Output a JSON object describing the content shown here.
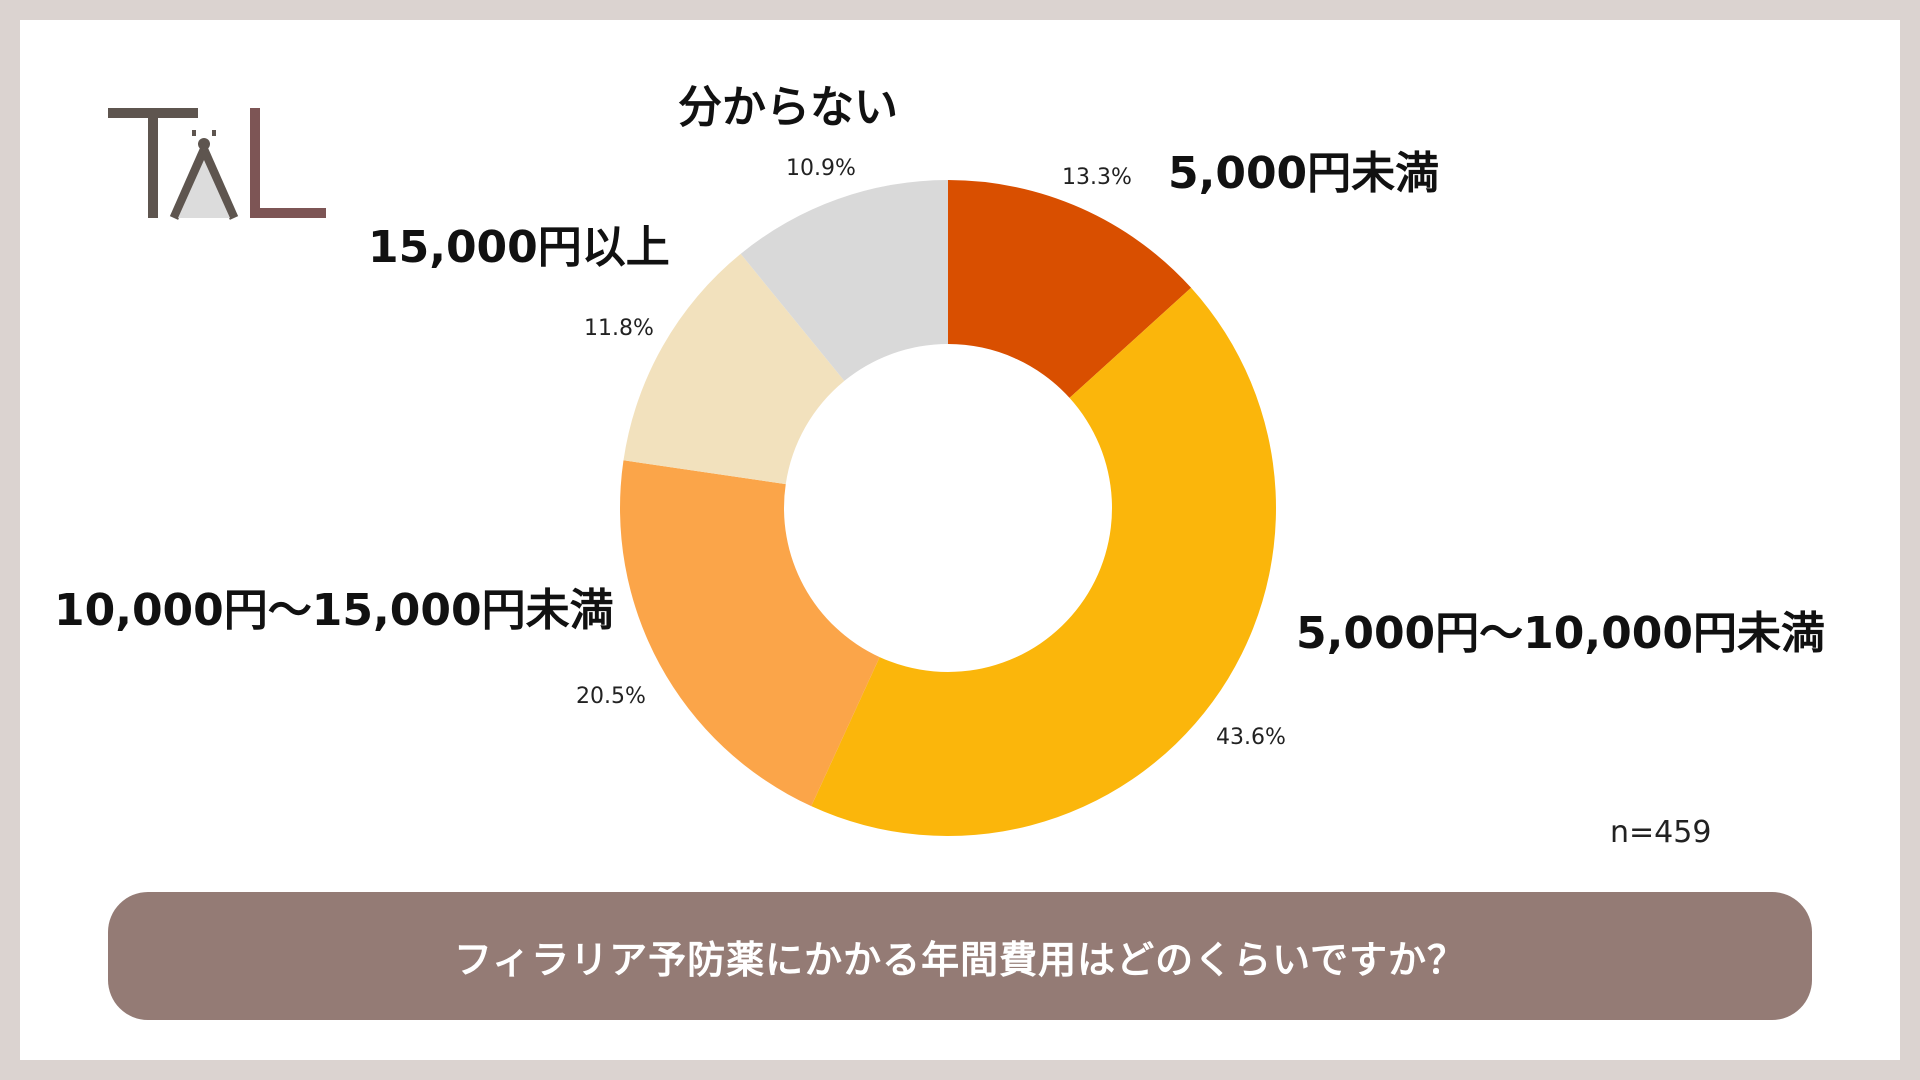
{
  "brand": {
    "logo_text": "TAL",
    "colors": {
      "primary": "#5e554f",
      "accent": "#7d5555"
    }
  },
  "question": "フィラリア予防薬にかかる年間費用はどのくらいですか？",
  "sample_size": "n=459",
  "colors": {
    "background": "#dbd3d0",
    "card": "#ffffff",
    "question_bar": "#947b75"
  },
  "chart_data": {
    "type": "pie",
    "donut": true,
    "start_angle_deg": 0,
    "direction": "clockwise",
    "slices": [
      {
        "label": "5,000円未満",
        "value": 13.3,
        "display": "13.3%",
        "color": "#d94f00"
      },
      {
        "label": "5,000円〜10,000円未満",
        "value": 43.6,
        "display": "43.6%",
        "color": "#fbb60b"
      },
      {
        "label": "10,000円〜15,000円未満",
        "value": 20.5,
        "display": "20.5%",
        "color": "#fba549"
      },
      {
        "label": "15,000円以上",
        "value": 11.8,
        "display": "11.8%",
        "color": "#f2e1bd"
      },
      {
        "label": "分からない",
        "value": 10.9,
        "display": "10.9%",
        "color": "#d9d9d9"
      }
    ]
  }
}
